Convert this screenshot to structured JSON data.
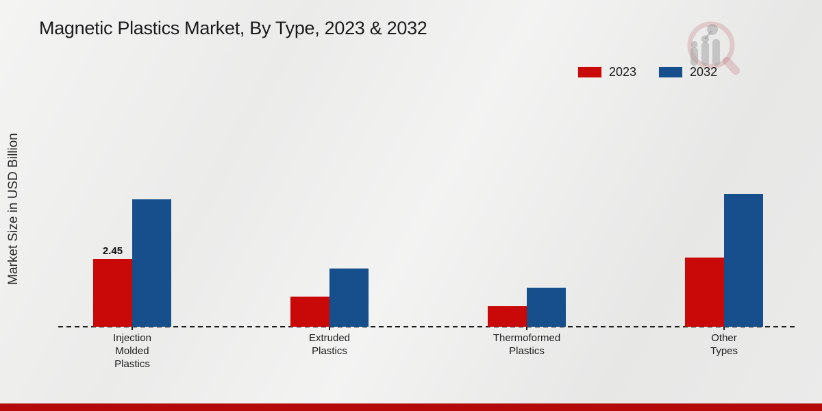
{
  "title": "Magnetic Plastics Market, By Type, 2023 & 2032",
  "legend": [
    {
      "label": "2023",
      "color": "#c90808"
    },
    {
      "label": "2032",
      "color": "#164f8b"
    }
  ],
  "footer_bar_color": "#b50909",
  "watermark_icon": "magnifier-bar-chart-logo",
  "chart_data": {
    "type": "bar",
    "title": "Magnetic Plastics Market, By Type, 2023 & 2032",
    "xlabel": "",
    "ylabel": "Market Size in USD Billion",
    "categories": [
      "Injection Molded Plastics",
      "Extruded Plastics",
      "Thermoformed Plastics",
      "Other Types"
    ],
    "category_lines": [
      [
        "Injection",
        "Molded",
        "Plastics"
      ],
      [
        "Extruded",
        "Plastics"
      ],
      [
        "Thermoformed",
        "Plastics"
      ],
      [
        "Other",
        "Types"
      ]
    ],
    "series": [
      {
        "name": "2023",
        "color": "#c90808",
        "values": [
          2.45,
          1.1,
          0.75,
          2.5
        ]
      },
      {
        "name": "2032",
        "color": "#164f8b",
        "values": [
          4.6,
          2.1,
          1.4,
          4.8
        ]
      }
    ],
    "data_labels": [
      {
        "series_index": 0,
        "category_index": 0,
        "text": "2.45"
      }
    ],
    "ylim": [
      0,
      5.5
    ],
    "grid": false,
    "y_axis_ticks_visible": false,
    "baseline_style": "dashed",
    "legend_position": "top-right"
  }
}
